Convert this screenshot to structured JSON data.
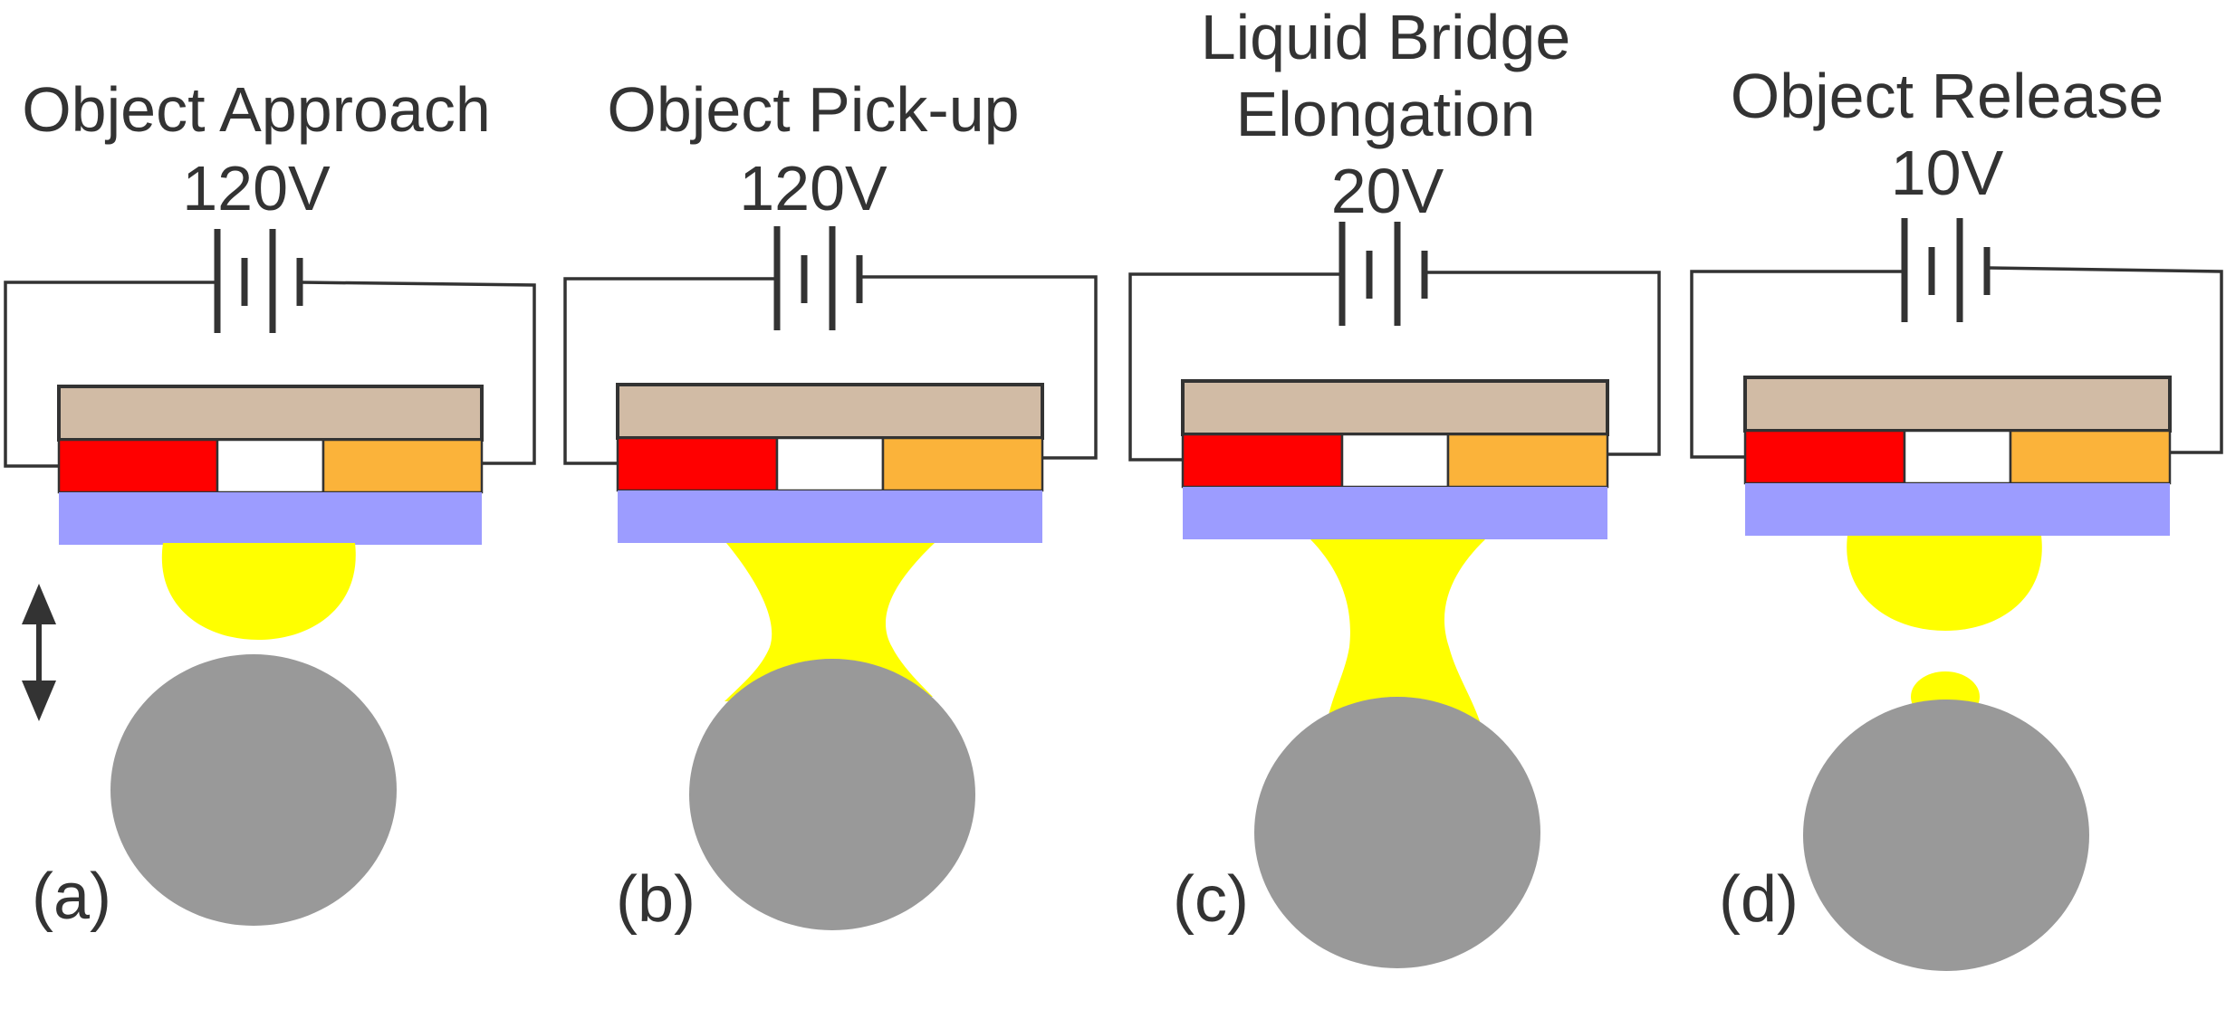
{
  "panels": [
    {
      "label": "(a)",
      "title": [
        "Object Approach"
      ],
      "voltage": "120V",
      "state": "approach"
    },
    {
      "label": "(b)",
      "title": [
        "Object Pick-up"
      ],
      "voltage": "120V",
      "state": "pickup"
    },
    {
      "label": "(c)",
      "title": [
        "Liquid Bridge",
        "Elongation"
      ],
      "voltage": "20V",
      "state": "elongation"
    },
    {
      "label": "(d)",
      "title": [
        "Object Release"
      ],
      "voltage": "10V",
      "state": "release"
    }
  ],
  "colors": {
    "substrate": "#d1bba5",
    "electrode_left": "#ff0000",
    "electrode_right": "#fbb33a",
    "dielectric": "#9c9cff",
    "liquid": "#ffff00",
    "object": "#999999",
    "stroke": "#333333"
  },
  "icons": {
    "battery": "battery-symbol-icon",
    "motion": "double-arrow-vertical-icon"
  }
}
